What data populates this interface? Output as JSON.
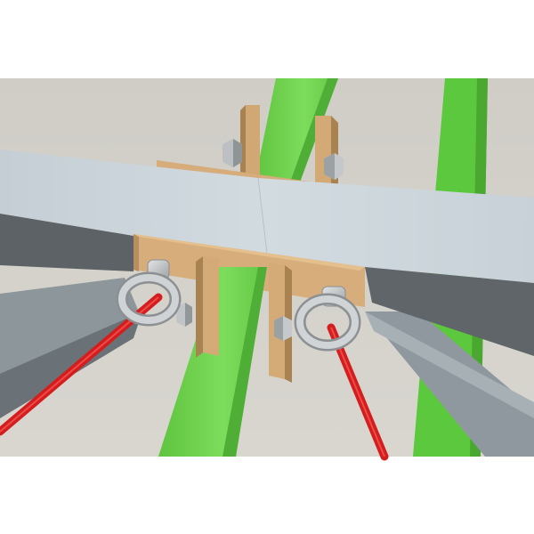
{
  "scene": {
    "subject": "structural-beam-joint-render",
    "colors": {
      "background": "#d3d1ca",
      "grey_beam_top": "#c9d3d9",
      "grey_beam_side": "#5f6468",
      "grey_beam_lower": "#8f989d",
      "green_member": "#6fd54f",
      "green_member_dark": "#4fae36",
      "plate": "#d5ab78",
      "plate_shadow": "#a78051",
      "steel": "#c5c8ca",
      "cable": "#d81f1f"
    },
    "icons": {
      "eye_bolt_left": "eye-bolt-icon",
      "eye_bolt_right": "eye-bolt-icon",
      "nuts": "hex-nut-icon"
    }
  }
}
